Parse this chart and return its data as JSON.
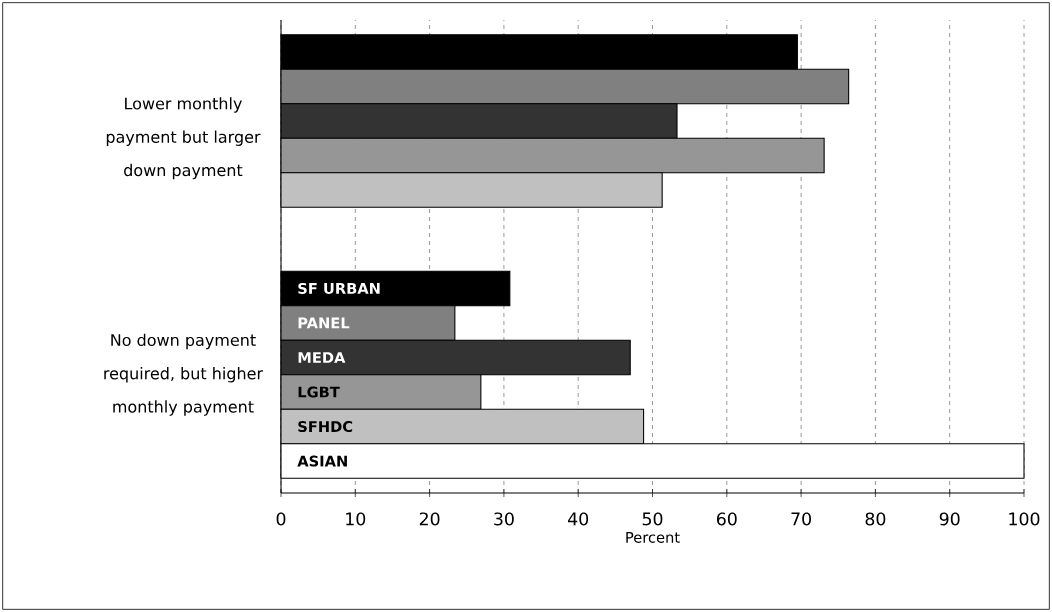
{
  "chart_data": {
    "type": "bar",
    "orientation": "horizontal",
    "xlabel": "Percent",
    "categories": [
      "Lower monthly payment but larger down payment",
      "No down payment required, but higher monthly payment"
    ],
    "series": [
      {
        "name": "SF URBAN",
        "color": "#000000",
        "values": [
          69.5,
          30.8
        ]
      },
      {
        "name": "PANEL",
        "color": "#808080",
        "values": [
          76.4,
          23.4
        ]
      },
      {
        "name": "MEDA",
        "color": "#333333",
        "values": [
          53.3,
          47.0
        ]
      },
      {
        "name": "LGBT",
        "color": "#969696",
        "values": [
          73.1,
          26.9
        ]
      },
      {
        "name": "SFHDC",
        "color": "#c0c0c0",
        "values": [
          51.3,
          48.8
        ]
      },
      {
        "name": "ASIAN",
        "color": "#ffffff",
        "values": [
          null,
          100
        ]
      }
    ],
    "xlim": [
      0,
      100
    ],
    "xticks": [
      0,
      10,
      20,
      30,
      40,
      50,
      60,
      70,
      80,
      90,
      100
    ],
    "grid": "x",
    "legend": false
  }
}
